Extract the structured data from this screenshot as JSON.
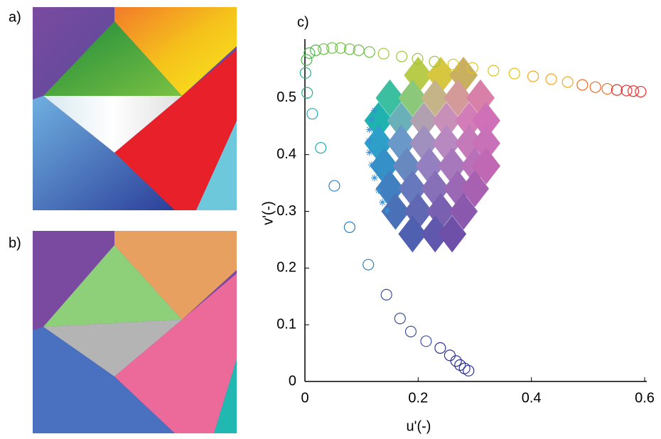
{
  "panels": [
    "a)",
    "b)"
  ],
  "chart_data": {
    "type": "scatter",
    "panel_label": "c)",
    "xlabel": "u'(-)",
    "ylabel": "v'(-)",
    "xlim": [
      0,
      0.6
    ],
    "ylim": [
      0,
      0.6
    ],
    "xticks": [
      0,
      0.2,
      0.4,
      0.6
    ],
    "yticks": [
      0,
      0.1,
      0.2,
      0.3,
      0.4,
      0.5
    ],
    "series": [
      {
        "marker": "diamond",
        "x": [
          0.2,
          0.24,
          0.28,
          0.15,
          0.19,
          0.23,
          0.27,
          0.31,
          0.13,
          0.17,
          0.21,
          0.25,
          0.29,
          0.32,
          0.13,
          0.17,
          0.21,
          0.25,
          0.29,
          0.32,
          0.14,
          0.18,
          0.22,
          0.26,
          0.3,
          0.32,
          0.15,
          0.19,
          0.23,
          0.27,
          0.3,
          0.16,
          0.2,
          0.24,
          0.28,
          0.19,
          0.23,
          0.26
        ],
        "y": [
          0.54,
          0.54,
          0.54,
          0.5,
          0.5,
          0.5,
          0.5,
          0.5,
          0.46,
          0.46,
          0.46,
          0.46,
          0.46,
          0.46,
          0.42,
          0.42,
          0.42,
          0.42,
          0.42,
          0.42,
          0.38,
          0.38,
          0.38,
          0.38,
          0.38,
          0.38,
          0.34,
          0.34,
          0.34,
          0.34,
          0.34,
          0.3,
          0.3,
          0.3,
          0.3,
          0.26,
          0.26,
          0.26
        ],
        "colors": [
          "#b8cc4a",
          "#d6c640",
          "#c9b060",
          "#3cbfa0",
          "#8cc87a",
          "#c4b488",
          "#d49a9a",
          "#d880a8",
          "#1fb3b0",
          "#6ab0b8",
          "#b0a0b0",
          "#c890b8",
          "#d27cb8",
          "#d070b8",
          "#2e9fc8",
          "#6a98c8",
          "#a090c0",
          "#b888c0",
          "#c47ab8",
          "#c870b8",
          "#3590c8",
          "#6888c0",
          "#9480c0",
          "#a878bc",
          "#b870b8",
          "#c068b4",
          "#4080c0",
          "#6878bc",
          "#8870b8",
          "#9a68b4",
          "#a860b0",
          "#4a70b8",
          "#6068b4",
          "#7a60b0",
          "#8a58ac",
          "#5060b0",
          "#6058ac",
          "#6e50a8"
        ]
      },
      {
        "marker": "asterisk",
        "color": "#3b8fd0",
        "x": [
          0.145,
          0.137,
          0.13,
          0.123,
          0.118,
          0.114,
          0.113,
          0.114,
          0.118,
          0.123
        ],
        "y": [
          0.301,
          0.316,
          0.337,
          0.359,
          0.382,
          0.404,
          0.424,
          0.444,
          0.462,
          0.478
        ]
      },
      {
        "marker": "circle",
        "x": [
          0.289,
          0.282,
          0.274,
          0.267,
          0.256,
          0.239,
          0.214,
          0.187,
          0.168,
          0.144,
          0.112,
          0.079,
          0.052,
          0.028,
          0.013,
          0.004,
          0.001,
          0.003,
          0.008,
          0.019,
          0.033,
          0.048,
          0.063,
          0.079,
          0.095,
          0.114,
          0.139,
          0.171,
          0.199,
          0.229,
          0.262,
          0.296,
          0.333,
          0.37,
          0.403,
          0.435,
          0.464,
          0.49,
          0.513,
          0.534,
          0.551,
          0.568,
          0.58,
          0.593
        ],
        "y": [
          0.019,
          0.023,
          0.029,
          0.036,
          0.046,
          0.059,
          0.071,
          0.088,
          0.111,
          0.153,
          0.206,
          0.272,
          0.345,
          0.412,
          0.472,
          0.509,
          0.544,
          0.567,
          0.579,
          0.584,
          0.586,
          0.588,
          0.588,
          0.586,
          0.584,
          0.581,
          0.578,
          0.573,
          0.569,
          0.564,
          0.559,
          0.553,
          0.548,
          0.543,
          0.538,
          0.533,
          0.528,
          0.523,
          0.519,
          0.516,
          0.514,
          0.513,
          0.512,
          0.511
        ],
        "colors": [
          "#2e3192",
          "#2e3192",
          "#2e3192",
          "#2e3192",
          "#2e3192",
          "#2e3192",
          "#3b4ea3",
          "#3b4ea3",
          "#3b4ea3",
          "#3b4ea3",
          "#2f7fbf",
          "#2f7fbf",
          "#2f7fbf",
          "#1ea8b5",
          "#1ea8b5",
          "#20b08a",
          "#20b08a",
          "#4cb848",
          "#4cb848",
          "#4cb848",
          "#6cbd45",
          "#6cbd45",
          "#6cbd45",
          "#6cbd45",
          "#6cbd45",
          "#6cbd45",
          "#9bc53d",
          "#9bc53d",
          "#9bc53d",
          "#9bc53d",
          "#e0c21b",
          "#e0c21b",
          "#e0c21b",
          "#e0c21b",
          "#f5a623",
          "#f5a623",
          "#f5a623",
          "#ef6b2b",
          "#ef6b2b",
          "#ef6b2b",
          "#e52d2d",
          "#e52d2d",
          "#e52d2d",
          "#e52d2d"
        ]
      }
    ]
  }
}
